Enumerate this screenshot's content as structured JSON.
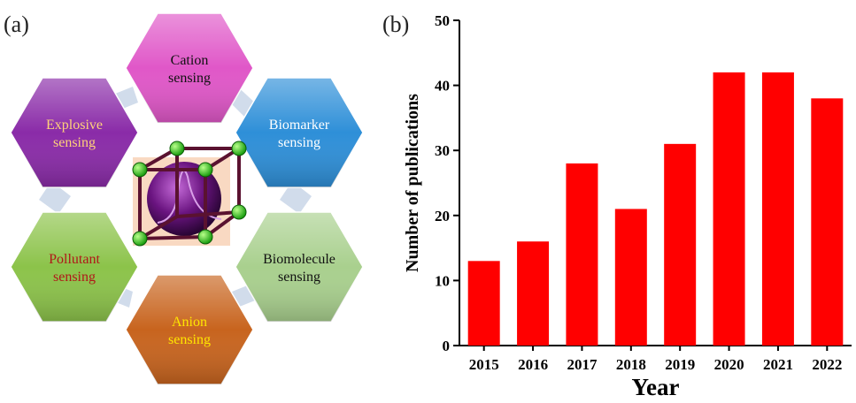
{
  "panel_a": {
    "letter": "(a)",
    "hexagons": [
      {
        "id": "cation",
        "line1": "Cation",
        "line2": "sensing",
        "fill": "#e057c8",
        "text_color": "#111111"
      },
      {
        "id": "biomarker",
        "line1": "Biomarker",
        "line2": "sensing",
        "fill": "#2e8fd8",
        "text_color": "#ffffff"
      },
      {
        "id": "biomolecule",
        "line1": "Biomolecule",
        "line2": "sensing",
        "fill": "#a9d08e",
        "text_color": "#111111"
      },
      {
        "id": "anion",
        "line1": "Anion",
        "line2": "sensing",
        "fill": "#c8641e",
        "text_color": "#ffe600"
      },
      {
        "id": "pollutant",
        "line1": "Pollutant",
        "line2": "sensing",
        "fill": "#8cc34a",
        "text_color": "#b01818"
      },
      {
        "id": "explosive",
        "line1": "Explosive",
        "line2": "sensing",
        "fill": "#8a2ba8",
        "text_color": "#ffd27a"
      }
    ]
  },
  "panel_b": {
    "letter": "(b)"
  },
  "chart_data": {
    "type": "bar",
    "categories": [
      "2015",
      "2016",
      "2017",
      "2018",
      "2019",
      "2020",
      "2021",
      "2022"
    ],
    "values": [
      13,
      16,
      28,
      21,
      31,
      42,
      42,
      38
    ],
    "xlabel": "Year",
    "ylabel": "Number of publications",
    "ylim": [
      0,
      50
    ],
    "yticks": [
      0,
      10,
      20,
      30,
      40,
      50
    ],
    "bar_color": "#ff0000",
    "grid": false
  }
}
